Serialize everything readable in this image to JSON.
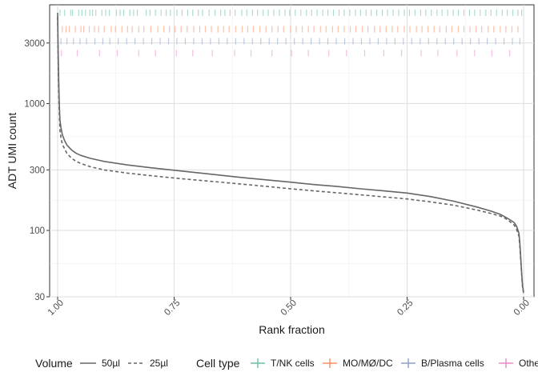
{
  "chart_data": {
    "type": "line",
    "xlabel": "Rank fraction",
    "ylabel": "ADT UMI count",
    "x_reversed": true,
    "xlim": [
      1.0,
      0.0
    ],
    "y_scale": "log10",
    "ylim": [
      30,
      6000
    ],
    "x_ticks": [
      "1.00",
      "0.75",
      "0.50",
      "0.25",
      "0.00"
    ],
    "x_tick_values": [
      1.0,
      0.75,
      0.5,
      0.25,
      0.0
    ],
    "y_ticks": [
      "30",
      "100",
      "300",
      "1000",
      "3000"
    ],
    "y_tick_values": [
      30,
      100,
      300,
      1000,
      3000
    ],
    "grid": true,
    "legend_position": "bottom",
    "series": [
      {
        "name": "50µl",
        "line_style": "solid",
        "color": "#666666",
        "x": [
          1.0,
          0.999,
          0.998,
          0.997,
          0.996,
          0.995,
          0.993,
          0.99,
          0.985,
          0.98,
          0.97,
          0.96,
          0.95,
          0.93,
          0.9,
          0.85,
          0.8,
          0.75,
          0.7,
          0.65,
          0.6,
          0.55,
          0.5,
          0.45,
          0.4,
          0.35,
          0.3,
          0.25,
          0.2,
          0.15,
          0.1,
          0.07,
          0.05,
          0.04,
          0.03,
          0.02,
          0.015,
          0.01,
          0.008,
          0.006,
          0.004,
          0.002,
          0.0
        ],
        "y": [
          5200,
          2600,
          1700,
          1200,
          900,
          740,
          650,
          570,
          510,
          470,
          430,
          405,
          390,
          370,
          350,
          328,
          312,
          298,
          285,
          272,
          260,
          250,
          240,
          230,
          222,
          213,
          205,
          197,
          185,
          170,
          153,
          142,
          134,
          128,
          122,
          115,
          108,
          95,
          80,
          60,
          45,
          36,
          33
        ]
      },
      {
        "name": "25µl",
        "line_style": "dashed",
        "color": "#666666",
        "x": [
          1.0,
          0.999,
          0.998,
          0.997,
          0.996,
          0.995,
          0.993,
          0.99,
          0.985,
          0.98,
          0.97,
          0.96,
          0.95,
          0.93,
          0.9,
          0.85,
          0.8,
          0.75,
          0.7,
          0.65,
          0.6,
          0.55,
          0.5,
          0.45,
          0.4,
          0.35,
          0.3,
          0.25,
          0.2,
          0.15,
          0.1,
          0.07,
          0.05,
          0.04,
          0.03,
          0.02,
          0.015,
          0.01,
          0.008,
          0.006,
          0.004,
          0.002,
          0.0
        ],
        "y": [
          4800,
          2300,
          1400,
          1000,
          760,
          620,
          540,
          480,
          440,
          405,
          370,
          350,
          337,
          318,
          300,
          283,
          270,
          259,
          249,
          240,
          231,
          222,
          213,
          205,
          198,
          191,
          184,
          177,
          168,
          158,
          145,
          136,
          130,
          125,
          118,
          110,
          102,
          90,
          75,
          57,
          44,
          35,
          32
        ]
      }
    ],
    "rug": [
      {
        "name": "T/NK cells",
        "color": "#66c2a5",
        "y_level": 5200,
        "x": [
          0.995,
          0.985,
          0.972,
          0.968,
          0.955,
          0.948,
          0.94,
          0.931,
          0.925,
          0.918,
          0.905,
          0.897,
          0.889,
          0.874,
          0.866,
          0.858,
          0.845,
          0.837,
          0.829,
          0.81,
          0.802,
          0.79,
          0.778,
          0.767,
          0.758,
          0.744,
          0.733,
          0.721,
          0.71,
          0.698,
          0.689,
          0.675,
          0.662,
          0.65,
          0.641,
          0.63,
          0.619,
          0.605,
          0.594,
          0.582,
          0.571,
          0.559,
          0.548,
          0.536,
          0.524,
          0.512,
          0.502,
          0.49,
          0.478,
          0.466,
          0.455,
          0.443,
          0.431,
          0.42,
          0.408,
          0.396,
          0.385,
          0.373,
          0.361,
          0.35,
          0.338,
          0.327,
          0.315,
          0.303,
          0.292,
          0.28,
          0.268,
          0.256,
          0.245,
          0.233,
          0.221,
          0.21,
          0.198,
          0.186,
          0.175,
          0.163,
          0.151,
          0.14,
          0.128,
          0.116,
          0.105,
          0.093,
          0.081,
          0.07,
          0.058,
          0.046,
          0.035,
          0.023,
          0.012,
          0.004
        ]
      },
      {
        "name": "MO/MØ/DC",
        "color": "#fc8d62",
        "y_level": 3850,
        "x": [
          0.99,
          0.982,
          0.975,
          0.962,
          0.95,
          0.944,
          0.932,
          0.921,
          0.912,
          0.9,
          0.885,
          0.876,
          0.862,
          0.85,
          0.84,
          0.826,
          0.815,
          0.8,
          0.785,
          0.772,
          0.76,
          0.748,
          0.735,
          0.722,
          0.708,
          0.695,
          0.683,
          0.67,
          0.656,
          0.644,
          0.632,
          0.618,
          0.604,
          0.592,
          0.58,
          0.566,
          0.553,
          0.54,
          0.527,
          0.515,
          0.5,
          0.488,
          0.475,
          0.462,
          0.45,
          0.436,
          0.424,
          0.41,
          0.398,
          0.385,
          0.372,
          0.36,
          0.346,
          0.334,
          0.32,
          0.308,
          0.295,
          0.282,
          0.27,
          0.256,
          0.244,
          0.23,
          0.218,
          0.205,
          0.192,
          0.18,
          0.166,
          0.154,
          0.14,
          0.128,
          0.115,
          0.102,
          0.09,
          0.076,
          0.064,
          0.05,
          0.038,
          0.025,
          0.012
        ]
      },
      {
        "name": "B/Plasma cells",
        "color": "#8da0cb",
        "y_level": 3100,
        "x": [
          0.993,
          0.98,
          0.966,
          0.952,
          0.938,
          0.92,
          0.903,
          0.888,
          0.87,
          0.852,
          0.834,
          0.816,
          0.798,
          0.78,
          0.762,
          0.744,
          0.726,
          0.708,
          0.69,
          0.672,
          0.654,
          0.636,
          0.618,
          0.6,
          0.582,
          0.564,
          0.546,
          0.528,
          0.51,
          0.492,
          0.474,
          0.456,
          0.438,
          0.42,
          0.402,
          0.384,
          0.366,
          0.348,
          0.33,
          0.312,
          0.294,
          0.276,
          0.258,
          0.24,
          0.222,
          0.204,
          0.186,
          0.168,
          0.15,
          0.132,
          0.114,
          0.096,
          0.078,
          0.06,
          0.042,
          0.024,
          0.008
        ]
      },
      {
        "name": "Other",
        "color": "#e78ac3",
        "y_level": 2500,
        "x": [
          0.992,
          0.958,
          0.91,
          0.872,
          0.826,
          0.79,
          0.745,
          0.71,
          0.668,
          0.62,
          0.585,
          0.54,
          0.498,
          0.462,
          0.418,
          0.38,
          0.341,
          0.3,
          0.262,
          0.22,
          0.184,
          0.143,
          0.105,
          0.068,
          0.03
        ]
      }
    ]
  },
  "legend": {
    "volume_title": "Volume",
    "volume_items": [
      {
        "label": "50µl",
        "line_style": "solid"
      },
      {
        "label": "25µl",
        "line_style": "dashed"
      }
    ],
    "celltype_title": "Cell type",
    "celltype_items": [
      {
        "label": "T/NK cells",
        "color": "#66c2a5"
      },
      {
        "label": "MO/MØ/DC",
        "color": "#fc8d62"
      },
      {
        "label": "B/Plasma cells",
        "color": "#8da0cb"
      },
      {
        "label": "Other",
        "color": "#e78ac3"
      }
    ]
  }
}
